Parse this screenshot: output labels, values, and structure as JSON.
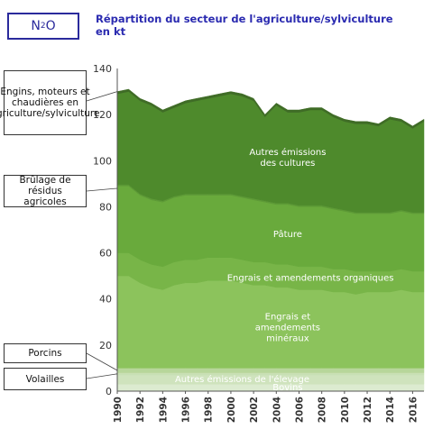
{
  "badge": {
    "formula": "N",
    "sub": "2",
    "tail": "O"
  },
  "title": {
    "line1": "Répartition du secteur de l'agriculture/sylviculture",
    "line2": "en kt"
  },
  "colors": {
    "engins": "#3f6c26",
    "cultures": "#4e8a2c",
    "brulage": "#5d9a36",
    "pature": "#69aa3c",
    "engrais_org": "#78b548",
    "engrais_min": "#8cc35c",
    "porcins": "#b7d69a",
    "volailles": "#c9e0b4",
    "autres_elevage": "#cfe3bd",
    "bovins": "#dcebd0"
  },
  "chart_data": {
    "type": "area",
    "title": "Répartition du secteur de l'agriculture/sylviculture en kt",
    "xlabel": "",
    "ylabel": "",
    "ylim": [
      0,
      140
    ],
    "yticks": [
      0,
      20,
      40,
      60,
      80,
      100,
      120,
      140
    ],
    "x": [
      1990,
      1991,
      1992,
      1993,
      1994,
      1995,
      1996,
      1997,
      1998,
      1999,
      2000,
      2001,
      2002,
      2003,
      2004,
      2005,
      2006,
      2007,
      2008,
      2009,
      2010,
      2011,
      2012,
      2013,
      2014,
      2015,
      2016,
      2017
    ],
    "xtick_labels": [
      "1990",
      "1992",
      "1994",
      "1996",
      "1998",
      "2000",
      "2002",
      "2004",
      "2006",
      "2008",
      "2010",
      "2012",
      "2014",
      "2016"
    ],
    "grid": false,
    "legend": "left",
    "series": [
      {
        "name": "Bovins",
        "color_key": "bovins",
        "label_lines": [
          "Bovins"
        ],
        "values": [
          3,
          3,
          3,
          3,
          3,
          3,
          3,
          3,
          3,
          3,
          3,
          3,
          3,
          3,
          3,
          3,
          3,
          3,
          3,
          3,
          3,
          3,
          3,
          3,
          3,
          3,
          3,
          3
        ]
      },
      {
        "name": "Autres émissions de l'élevage",
        "color_key": "autres_elevage",
        "label_lines": [
          "Autres émissions de l'élevage"
        ],
        "values": [
          4,
          4,
          4,
          4,
          4,
          4,
          4,
          4,
          4,
          4,
          4,
          4,
          4,
          4,
          4,
          4,
          4,
          4,
          4,
          4,
          4,
          4,
          4,
          4,
          4,
          4,
          4,
          4
        ]
      },
      {
        "name": "Volailles",
        "color_key": "volailles",
        "label_lines": [],
        "values": [
          1,
          1,
          1,
          1,
          1,
          1,
          1,
          1,
          1,
          1,
          1,
          1,
          1,
          1,
          1,
          1,
          1,
          1,
          1,
          1,
          1,
          1,
          1,
          1,
          1,
          1,
          1,
          1
        ]
      },
      {
        "name": "Porcins",
        "color_key": "porcins",
        "label_lines": [],
        "values": [
          2,
          2,
          2,
          2,
          2,
          2,
          2,
          2,
          2,
          2,
          2,
          2,
          2,
          2,
          2,
          2,
          2,
          2,
          2,
          2,
          2,
          2,
          2,
          2,
          2,
          2,
          2,
          2
        ]
      },
      {
        "name": "Engrais et amendements minéraux",
        "color_key": "engrais_min",
        "label_lines": [
          "Engrais et",
          "amendements",
          "minéraux"
        ],
        "values": [
          40,
          40,
          37,
          35,
          34,
          36,
          37,
          37,
          38,
          38,
          38,
          37,
          36,
          36,
          35,
          35,
          34,
          34,
          34,
          33,
          33,
          32,
          33,
          33,
          33,
          34,
          33,
          33
        ]
      },
      {
        "name": "Engrais et amendements organiques",
        "color_key": "engrais_org",
        "label_lines": [
          "Engrais et amendements organiques"
        ],
        "values": [
          10,
          10,
          10,
          10,
          10,
          10,
          10,
          10,
          10,
          10,
          10,
          10,
          10,
          10,
          10,
          10,
          10,
          10,
          10,
          10,
          10,
          10,
          9,
          9,
          9,
          9,
          9,
          9
        ]
      },
      {
        "name": "Pâture",
        "color_key": "pature",
        "label_lines": [
          "Pâture"
        ],
        "values": [
          29,
          29,
          28,
          28,
          28,
          28,
          28,
          28,
          27,
          27,
          27,
          27,
          27,
          26,
          26,
          26,
          26,
          26,
          26,
          26,
          25,
          25,
          25,
          25,
          25,
          25,
          25,
          25
        ]
      },
      {
        "name": "Brûlage de résidus agricoles",
        "color_key": "brulage",
        "label_lines": [],
        "values": [
          0.6,
          0.6,
          0.6,
          0.6,
          0.6,
          0.6,
          0.6,
          0.6,
          0.6,
          0.6,
          0.6,
          0.6,
          0.6,
          0.6,
          0.6,
          0.6,
          0.6,
          0.6,
          0.6,
          0.6,
          0.6,
          0.6,
          0.6,
          0.6,
          0.6,
          0.6,
          0.6,
          0.6
        ]
      },
      {
        "name": "Autres émissions des cultures",
        "color_key": "cultures",
        "label_lines": [
          "Autres émissions",
          "des cultures"
        ],
        "values": [
          39.4,
          40.4,
          40.4,
          40.4,
          38.4,
          38.4,
          39.4,
          40.4,
          41.4,
          42.4,
          43.4,
          43.4,
          42.4,
          36.4,
          42.4,
          39.4,
          40.4,
          41.4,
          41.4,
          39.4,
          38.4,
          38.4,
          38.4,
          37.4,
          40.4,
          38.4,
          36.4,
          39.4
        ]
      },
      {
        "name": "Engins, moteurs et chaudières en agriculture/sylviculture",
        "color_key": "engins",
        "label_lines": [],
        "values": [
          1,
          1,
          1,
          1,
          1,
          1,
          1,
          1,
          1,
          1,
          1,
          1,
          1,
          1,
          1,
          1,
          1,
          1,
          1,
          1,
          1,
          1,
          1,
          1,
          1,
          1,
          1,
          1
        ]
      }
    ],
    "side_labels": [
      {
        "text": "Engins, moteurs et chaudières en agriculture/sylviculture",
        "series": "Engins, moteurs et chaudières en agriculture/sylviculture"
      },
      {
        "text": "Brûlage de résidus agricoles",
        "series": "Brûlage de résidus agricoles"
      },
      {
        "text": "Porcins",
        "series": "Porcins"
      },
      {
        "text": "Volailles",
        "series": "Volailles"
      }
    ]
  }
}
